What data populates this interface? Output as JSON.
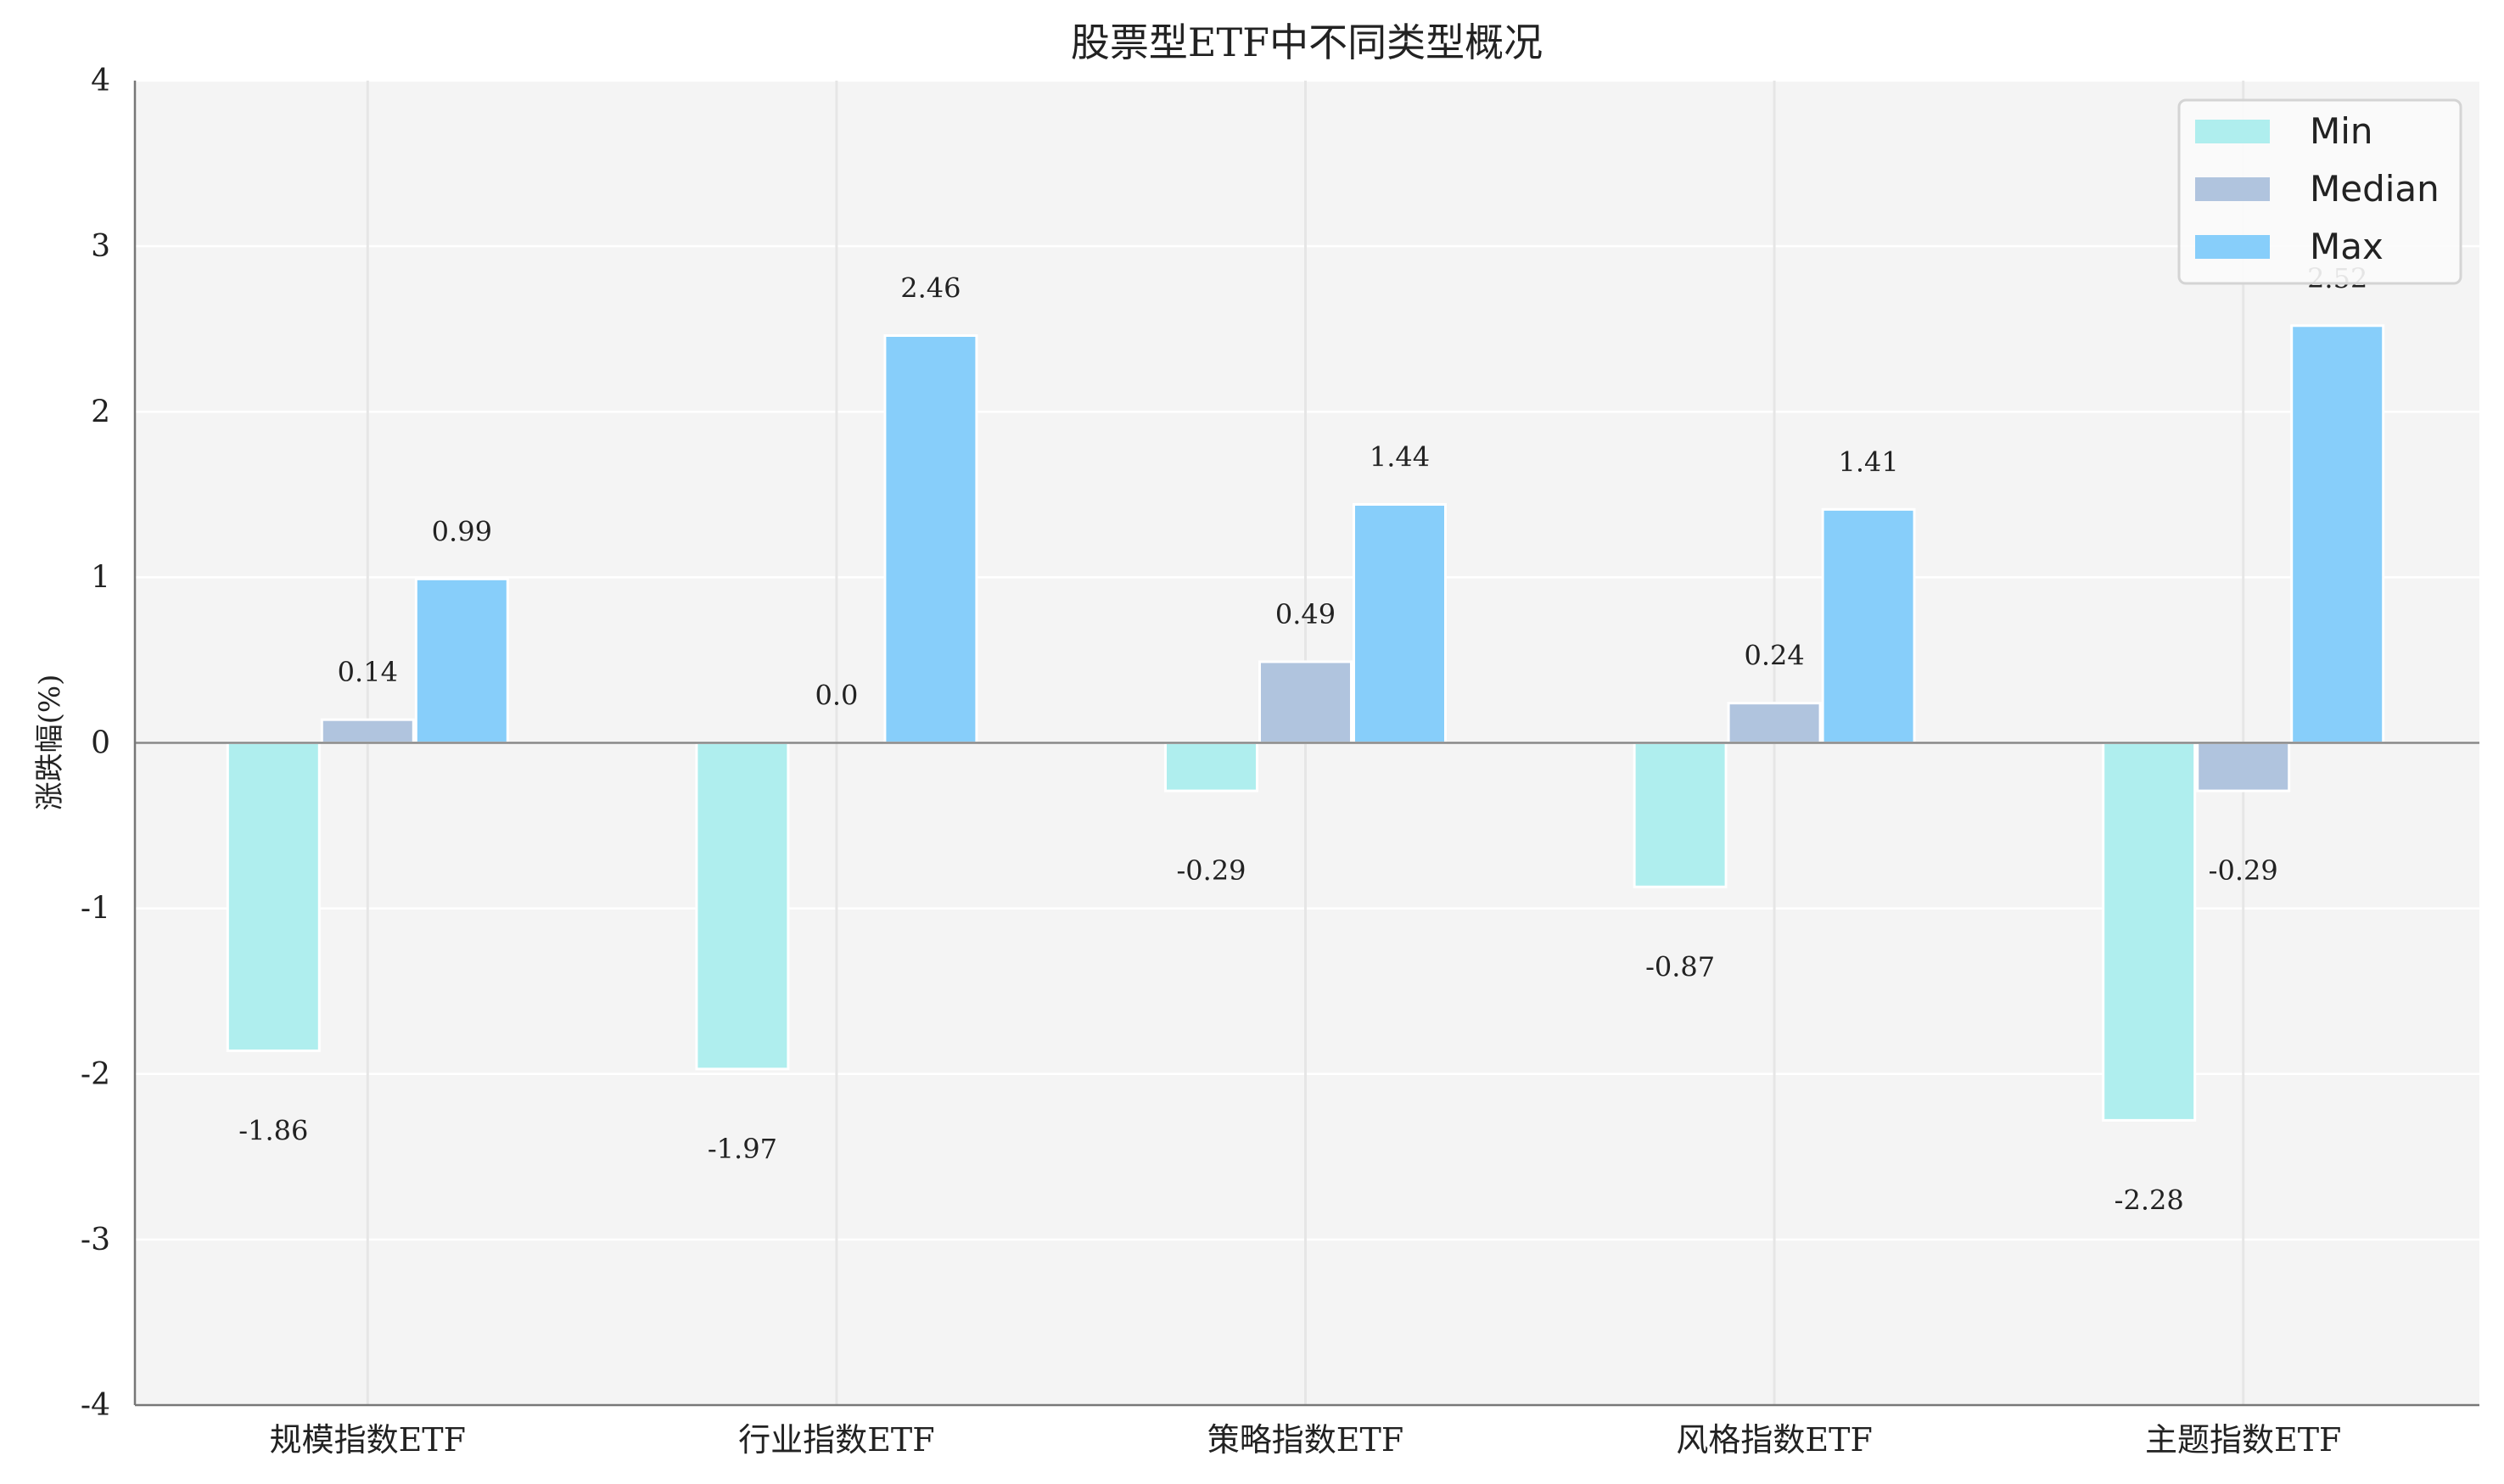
{
  "chart_data": {
    "type": "bar",
    "title": "股票型ETF中不同类型概况",
    "xlabel": "",
    "ylabel": "涨跌幅(%)",
    "ylim": [
      -4,
      4
    ],
    "yticks": [
      -4,
      -3,
      -2,
      -1,
      0,
      1,
      2,
      3,
      4
    ],
    "grid": true,
    "legend_position": "top-right",
    "categories": [
      "规模指数ETF",
      "行业指数ETF",
      "策略指数ETF",
      "风格指数ETF",
      "主题指数ETF"
    ],
    "series": [
      {
        "name": "Min",
        "color": "#afeeee",
        "values": [
          -1.86,
          -1.97,
          -0.29,
          -0.87,
          -2.28
        ]
      },
      {
        "name": "Median",
        "color": "#b0c4de",
        "values": [
          0.14,
          0.0,
          0.49,
          0.24,
          -0.29
        ]
      },
      {
        "name": "Max",
        "color": "#87cefa",
        "values": [
          0.99,
          2.46,
          1.44,
          1.41,
          2.52
        ]
      }
    ],
    "data_labels": [
      [
        "-1.86",
        "-1.97",
        "-0.29",
        "-0.87",
        "-2.28"
      ],
      [
        "0.14",
        "0.0",
        "0.49",
        "0.24",
        "-0.29"
      ],
      [
        "0.99",
        "2.46",
        "1.44",
        "1.41",
        "2.52"
      ]
    ]
  }
}
